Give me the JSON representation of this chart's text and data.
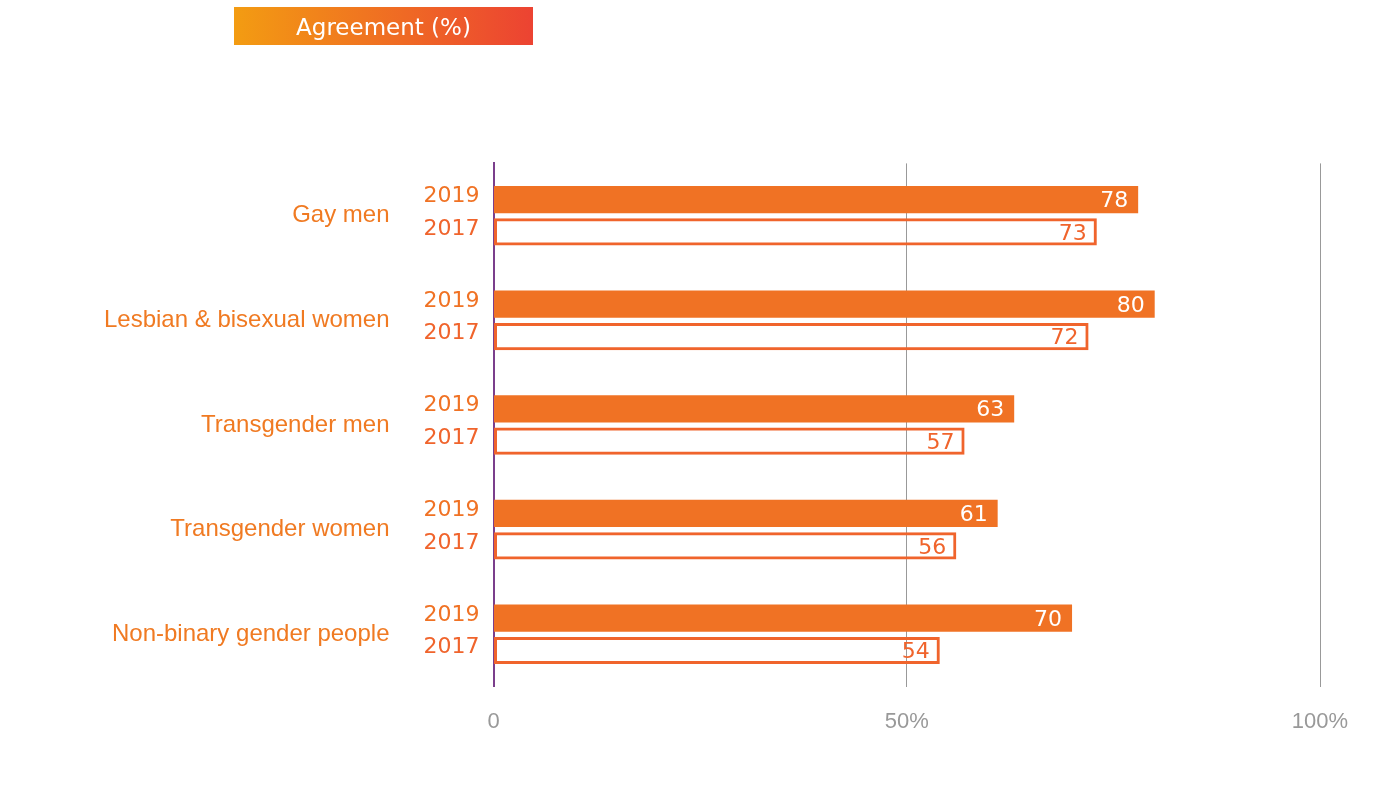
{
  "chart_data": {
    "type": "bar",
    "orientation": "horizontal",
    "title": "Agreement (%)",
    "categories": [
      "Gay men",
      "Lesbian & bisexual women",
      "Transgender men",
      "Transgender women",
      "Non-binary gender people"
    ],
    "series": [
      {
        "name": "2019",
        "color": "#f07224",
        "values": [
          78,
          80,
          63,
          61,
          70
        ]
      },
      {
        "name": "2017",
        "color": "#f0642c",
        "values": [
          73,
          72,
          57,
          56,
          54
        ]
      }
    ],
    "xlim": [
      0,
      100
    ],
    "xticks": [
      0,
      {
        "value": 50,
        "label": "50%"
      },
      {
        "value": 100,
        "label": "100%"
      }
    ],
    "grid": "x",
    "legend": false,
    "data_labels": true
  }
}
